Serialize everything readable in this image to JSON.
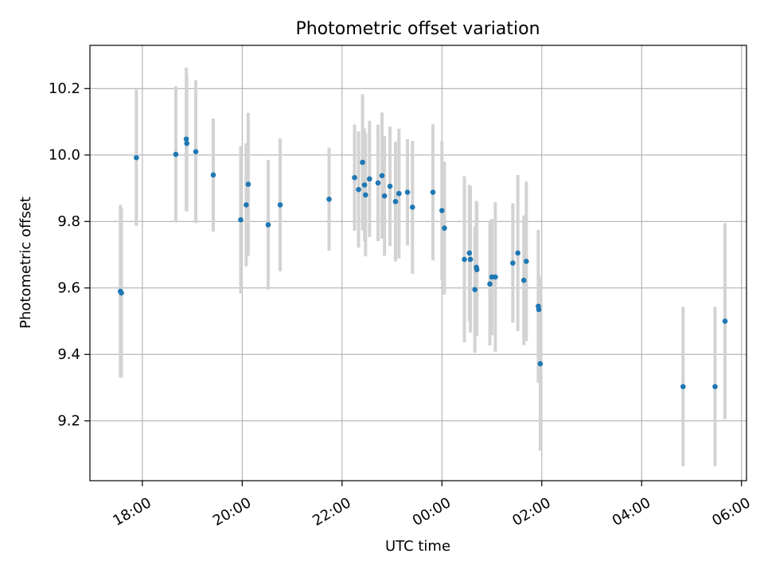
{
  "chart_data": {
    "type": "scatter",
    "title": "Photometric offset variation",
    "xlabel": "UTC time",
    "ylabel": "Photometric offset",
    "x_unit": "hours since 00:00 UTC",
    "xlim": [
      -7.05,
      6.1
    ],
    "ylim": [
      9.02,
      10.33
    ],
    "grid": true,
    "xticks": [
      {
        "value": -6,
        "label": "18:00"
      },
      {
        "value": -4,
        "label": "20:00"
      },
      {
        "value": -2,
        "label": "22:00"
      },
      {
        "value": 0,
        "label": "00:00"
      },
      {
        "value": 2,
        "label": "02:00"
      },
      {
        "value": 4,
        "label": "04:00"
      },
      {
        "value": 6,
        "label": "06:00"
      }
    ],
    "yticks": [
      {
        "value": 9.2,
        "label": "9.2"
      },
      {
        "value": 9.4,
        "label": "9.4"
      },
      {
        "value": 9.6,
        "label": "9.6"
      },
      {
        "value": 9.8,
        "label": "9.8"
      },
      {
        "value": 10.0,
        "label": "10.0"
      },
      {
        "value": 10.2,
        "label": "10.2"
      }
    ],
    "colors": {
      "marker": "#1f77b4",
      "errorbar": "#d3d3d3",
      "grid": "#b0b0b0"
    },
    "series": [
      {
        "name": "Photometric offset",
        "points": [
          {
            "x": -6.44,
            "y": 9.59,
            "err": 0.26
          },
          {
            "x": -6.42,
            "y": 9.585,
            "err": 0.255
          },
          {
            "x": -6.12,
            "y": 9.992,
            "err": 0.205
          },
          {
            "x": -5.33,
            "y": 10.002,
            "err": 0.205
          },
          {
            "x": -5.12,
            "y": 10.048,
            "err": 0.215
          },
          {
            "x": -5.11,
            "y": 10.035,
            "err": 0.205
          },
          {
            "x": -4.93,
            "y": 10.01,
            "err": 0.215
          },
          {
            "x": -4.58,
            "y": 9.94,
            "err": 0.17
          },
          {
            "x": -4.03,
            "y": 9.805,
            "err": 0.222
          },
          {
            "x": -3.92,
            "y": 9.85,
            "err": 0.185
          },
          {
            "x": -3.88,
            "y": 9.912,
            "err": 0.215
          },
          {
            "x": -3.48,
            "y": 9.79,
            "err": 0.195
          },
          {
            "x": -3.24,
            "y": 9.85,
            "err": 0.2
          },
          {
            "x": -2.26,
            "y": 9.867,
            "err": 0.155
          },
          {
            "x": -1.75,
            "y": 9.932,
            "err": 0.16
          },
          {
            "x": -1.67,
            "y": 9.896,
            "err": 0.175
          },
          {
            "x": -1.59,
            "y": 9.978,
            "err": 0.205
          },
          {
            "x": -1.55,
            "y": 9.91,
            "err": 0.17
          },
          {
            "x": -1.53,
            "y": 9.88,
            "err": 0.185
          },
          {
            "x": -1.45,
            "y": 9.928,
            "err": 0.175
          },
          {
            "x": -1.28,
            "y": 9.916,
            "err": 0.175
          },
          {
            "x": -1.2,
            "y": 9.938,
            "err": 0.19
          },
          {
            "x": -1.15,
            "y": 9.877,
            "err": 0.18
          },
          {
            "x": -1.04,
            "y": 9.906,
            "err": 0.18
          },
          {
            "x": -0.93,
            "y": 9.86,
            "err": 0.18
          },
          {
            "x": -0.86,
            "y": 9.884,
            "err": 0.195
          },
          {
            "x": -0.69,
            "y": 9.888,
            "err": 0.16
          },
          {
            "x": -0.59,
            "y": 9.843,
            "err": 0.2
          },
          {
            "x": -0.18,
            "y": 9.888,
            "err": 0.205
          },
          {
            "x": 0.0,
            "y": 9.833,
            "err": 0.21
          },
          {
            "x": 0.05,
            "y": 9.78,
            "err": 0.2
          },
          {
            "x": 0.45,
            "y": 9.686,
            "err": 0.25
          },
          {
            "x": 0.55,
            "y": 9.705,
            "err": 0.205
          },
          {
            "x": 0.57,
            "y": 9.686,
            "err": 0.22
          },
          {
            "x": 0.66,
            "y": 9.595,
            "err": 0.19
          },
          {
            "x": 0.69,
            "y": 9.662,
            "err": 0.2
          },
          {
            "x": 0.7,
            "y": 9.655,
            "err": 0.2
          },
          {
            "x": 0.96,
            "y": 9.612,
            "err": 0.185
          },
          {
            "x": 1.0,
            "y": 9.633,
            "err": 0.175
          },
          {
            "x": 1.07,
            "y": 9.633,
            "err": 0.225
          },
          {
            "x": 1.42,
            "y": 9.675,
            "err": 0.18
          },
          {
            "x": 1.52,
            "y": 9.705,
            "err": 0.235
          },
          {
            "x": 1.64,
            "y": 9.623,
            "err": 0.195
          },
          {
            "x": 1.69,
            "y": 9.68,
            "err": 0.24
          },
          {
            "x": 1.93,
            "y": 9.545,
            "err": 0.23
          },
          {
            "x": 1.94,
            "y": 9.535,
            "err": 0.1
          },
          {
            "x": 1.97,
            "y": 9.372,
            "err": 0.262
          },
          {
            "x": 4.83,
            "y": 9.303,
            "err": 0.24
          },
          {
            "x": 5.47,
            "y": 9.303,
            "err": 0.24
          },
          {
            "x": 5.67,
            "y": 9.5,
            "err": 0.295
          }
        ]
      }
    ]
  }
}
